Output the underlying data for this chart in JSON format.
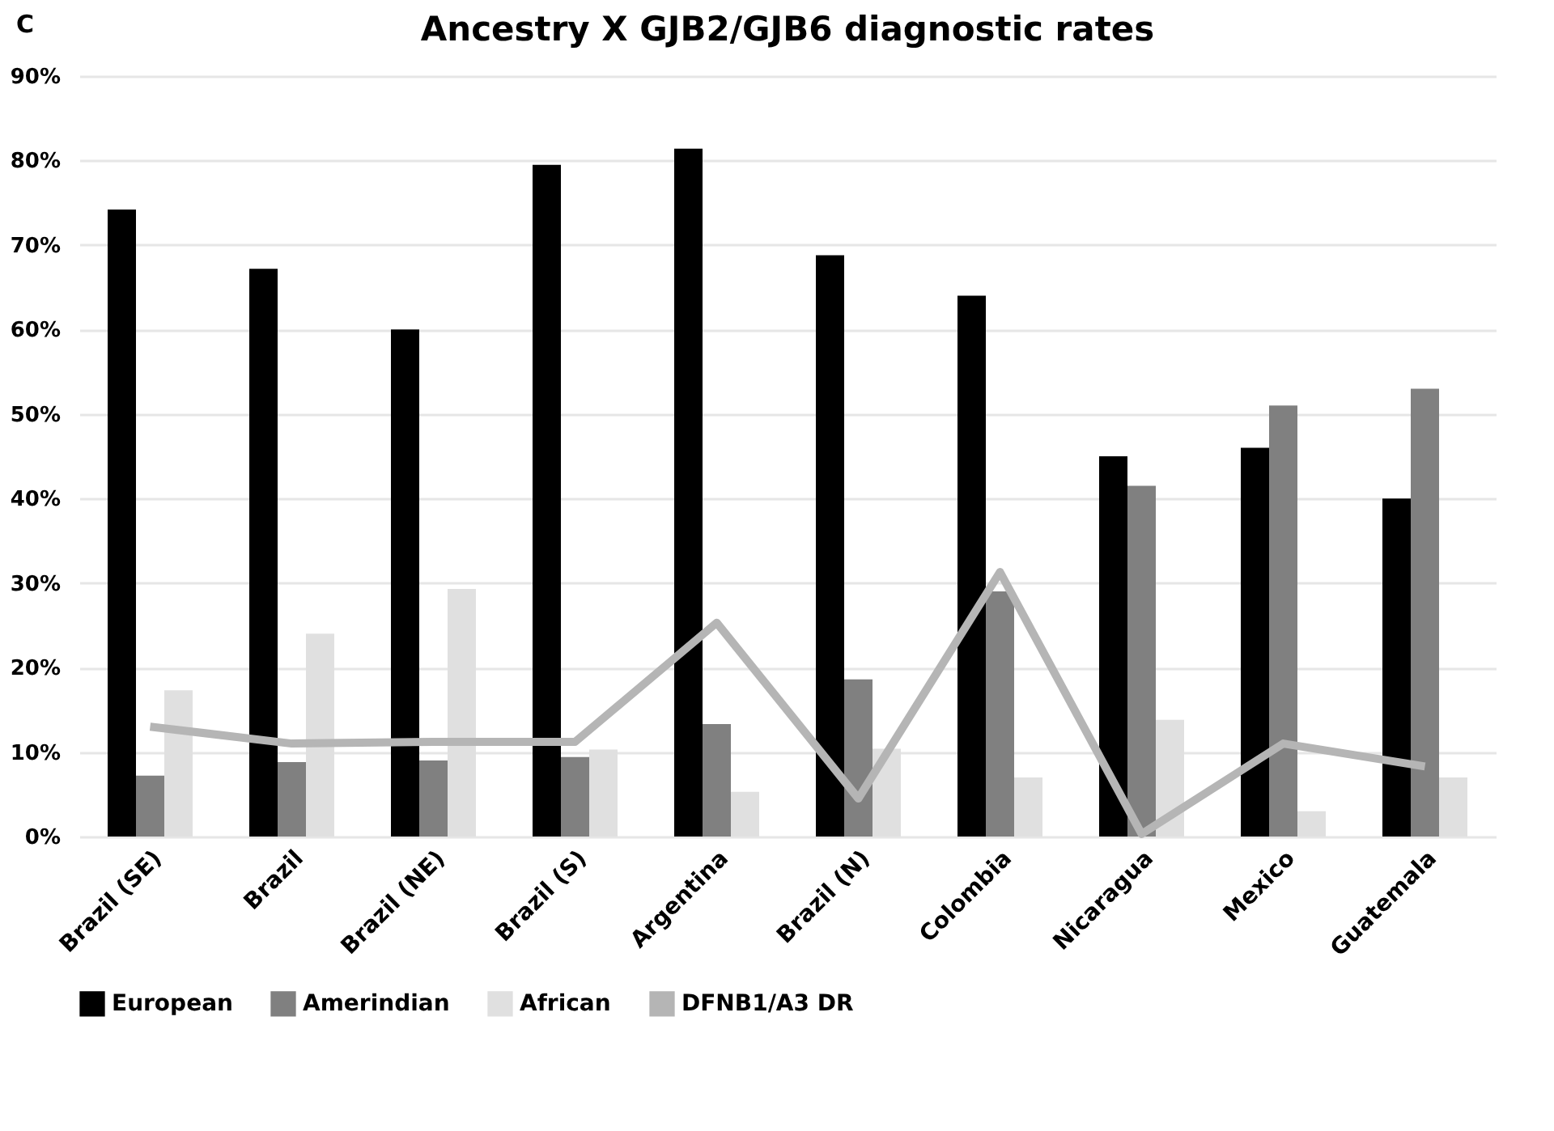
{
  "chart_data": {
    "type": "bar",
    "title": "Ancestry X GJB2/GJB6 diagnostic rates",
    "annotations": [
      "C"
    ],
    "categories": [
      "Brazil (SE)",
      "Brazil",
      "Brazil (NE)",
      "Brazil (S)",
      "Argentina",
      "Brazil (N)",
      "Colombia",
      "Nicaragua",
      "Mexico",
      "Guatemala"
    ],
    "series": [
      {
        "name": "European",
        "color": "#000000",
        "values": [
          74.2,
          67.2,
          60,
          79.5,
          81.4,
          68.8,
          64,
          45,
          46,
          40
        ]
      },
      {
        "name": "Amerindian",
        "color": "#808080",
        "values": [
          7.2,
          8.8,
          9,
          9.4,
          13.3,
          18.6,
          29,
          41.5,
          51,
          53
        ]
      },
      {
        "name": "African",
        "color": "#e0e0e0",
        "values": [
          17.3,
          24,
          29.3,
          10.3,
          5.3,
          10.4,
          7,
          13.8,
          3,
          7
        ]
      },
      {
        "name": "DFNB1/A3 DR",
        "type": "line",
        "color": "#b5b5b5",
        "values": [
          13,
          11,
          11.2,
          11.2,
          25.3,
          4.5,
          31.3,
          0.3,
          11,
          8.3
        ]
      }
    ],
    "ylim": [
      0,
      90
    ],
    "yticks": [
      {
        "value": 0,
        "label": "0%"
      },
      {
        "value": 10,
        "label": "10%"
      },
      {
        "value": 20,
        "label": "20%"
      },
      {
        "value": 30,
        "label": "30%"
      },
      {
        "value": 40,
        "label": "40%"
      },
      {
        "value": 50,
        "label": "50%"
      },
      {
        "value": 60,
        "label": "60%"
      },
      {
        "value": 70,
        "label": "70%"
      },
      {
        "value": 80,
        "label": "80%"
      },
      {
        "value": 90,
        "label": "90%"
      }
    ],
    "grid": "y",
    "legend": "bottom",
    "marker": "none"
  }
}
